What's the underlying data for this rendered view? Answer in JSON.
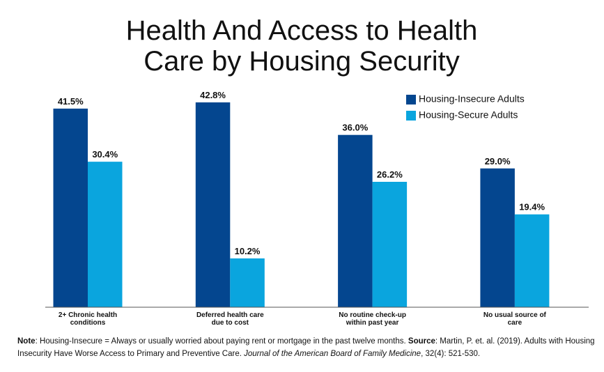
{
  "chart_data": {
    "type": "bar",
    "title": "Health And Access to Health Care by Housing Security",
    "categories": [
      "2+ Chronic health conditions",
      "Deferred health care due to cost",
      "No routine check-up within past year",
      "No usual source of care"
    ],
    "series": [
      {
        "name": "Housing-Insecure Adults",
        "color": "#04468f",
        "values": [
          41.5,
          42.8,
          36.0,
          29.0
        ],
        "value_labels": [
          "41.5%",
          "42.8%",
          "36.0%",
          "29.0%"
        ]
      },
      {
        "name": "Housing-Secure Adults",
        "color": "#0aa5de",
        "values": [
          30.4,
          10.2,
          26.2,
          19.4
        ],
        "value_labels": [
          "30.4%",
          "10.2%",
          "26.2%",
          "19.4%"
        ]
      }
    ],
    "legend": "upper right",
    "note_label": "Note",
    "note_text": ": Housing-Insecure = Always or usually worried about paying rent or mortgage in the past twelve months. ",
    "source_label": "Source",
    "source_text": ": Martin, P. et. al. (2019). Adults with Housing Insecurity Have Worse Access to Primary and Preventive Care. ",
    "journal": "Journal of the American Board of Family Medicine",
    "citation_end": ", 32(4): 521-530."
  }
}
